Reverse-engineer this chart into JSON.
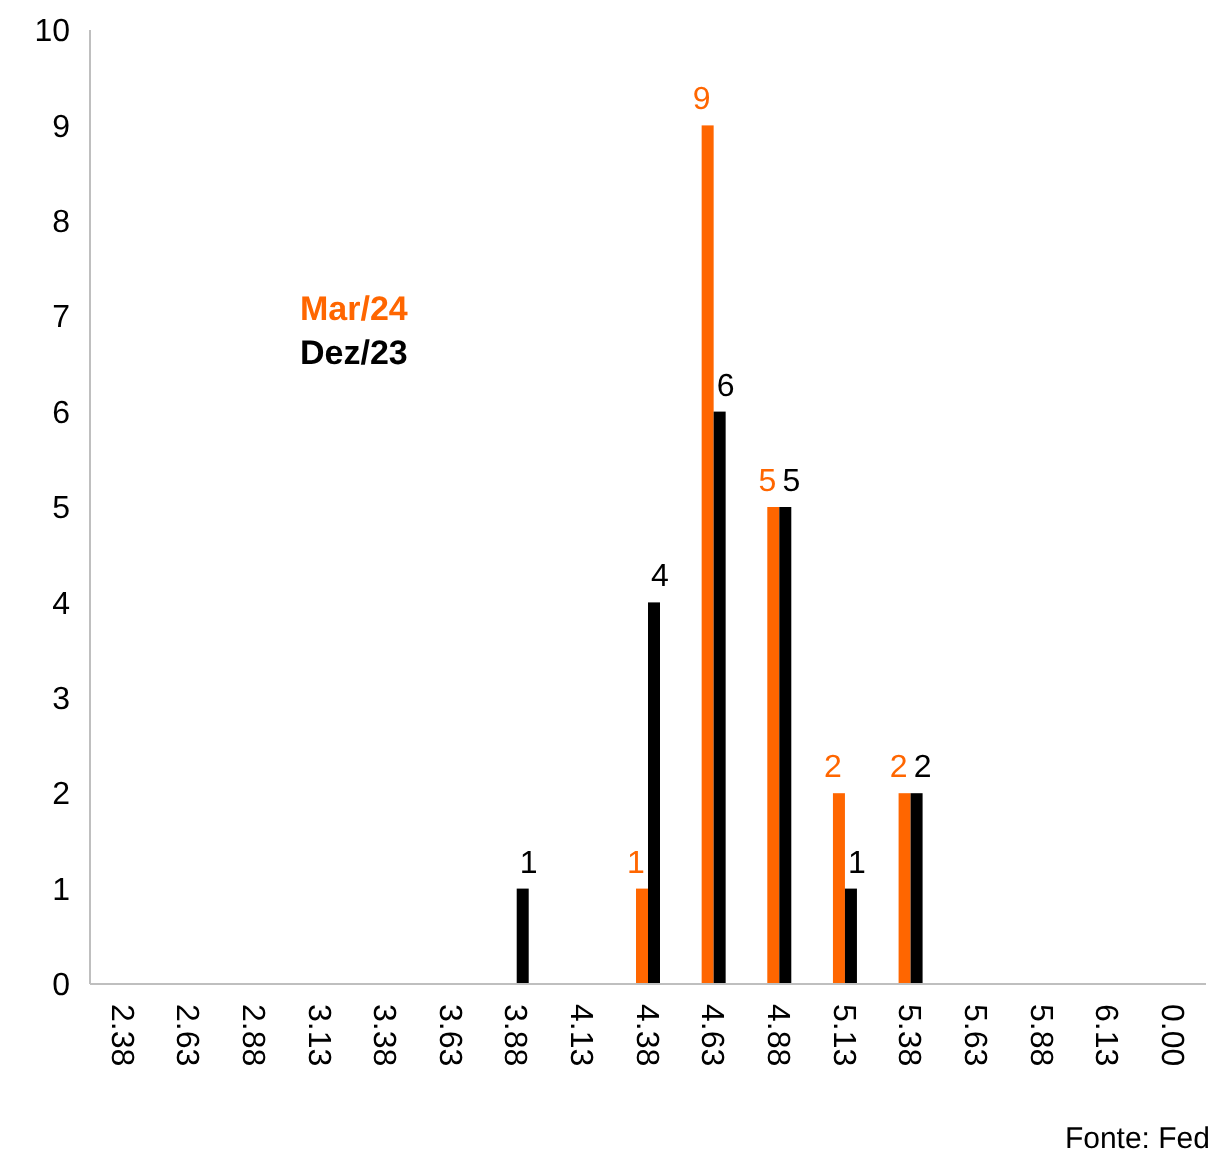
{
  "chart_data": {
    "type": "bar",
    "categories": [
      "2.38",
      "2.63",
      "2.88",
      "3.13",
      "3.38",
      "3.63",
      "3.88",
      "4.13",
      "4.38",
      "4.63",
      "4.88",
      "5.13",
      "5.38",
      "5.63",
      "5.88",
      "6.13",
      "0.00"
    ],
    "series": [
      {
        "name": "Mar/24",
        "color": "#ff6600",
        "values": [
          0,
          0,
          0,
          0,
          0,
          0,
          0,
          0,
          1,
          9,
          5,
          2,
          2,
          0,
          0,
          0,
          0
        ],
        "value_labels": [
          null,
          null,
          null,
          null,
          null,
          null,
          null,
          null,
          "1",
          "9",
          "5",
          "2",
          "2",
          null,
          null,
          null,
          null
        ]
      },
      {
        "name": "Dez/23",
        "color": "#000000",
        "values": [
          0,
          0,
          0,
          0,
          0,
          0,
          1,
          0,
          4,
          6,
          5,
          1,
          2,
          0,
          0,
          0,
          0
        ],
        "value_labels": [
          null,
          null,
          null,
          null,
          null,
          null,
          "1",
          null,
          "4",
          "6",
          "5",
          "1",
          "2",
          null,
          null,
          null,
          null
        ]
      }
    ],
    "ylim": [
      0,
      10
    ],
    "yticks": [
      0,
      1,
      2,
      3,
      4,
      5,
      6,
      7,
      8,
      9,
      10
    ],
    "grid": false,
    "legend": "top left",
    "annotations": [
      "Fonte: Fed"
    ]
  }
}
